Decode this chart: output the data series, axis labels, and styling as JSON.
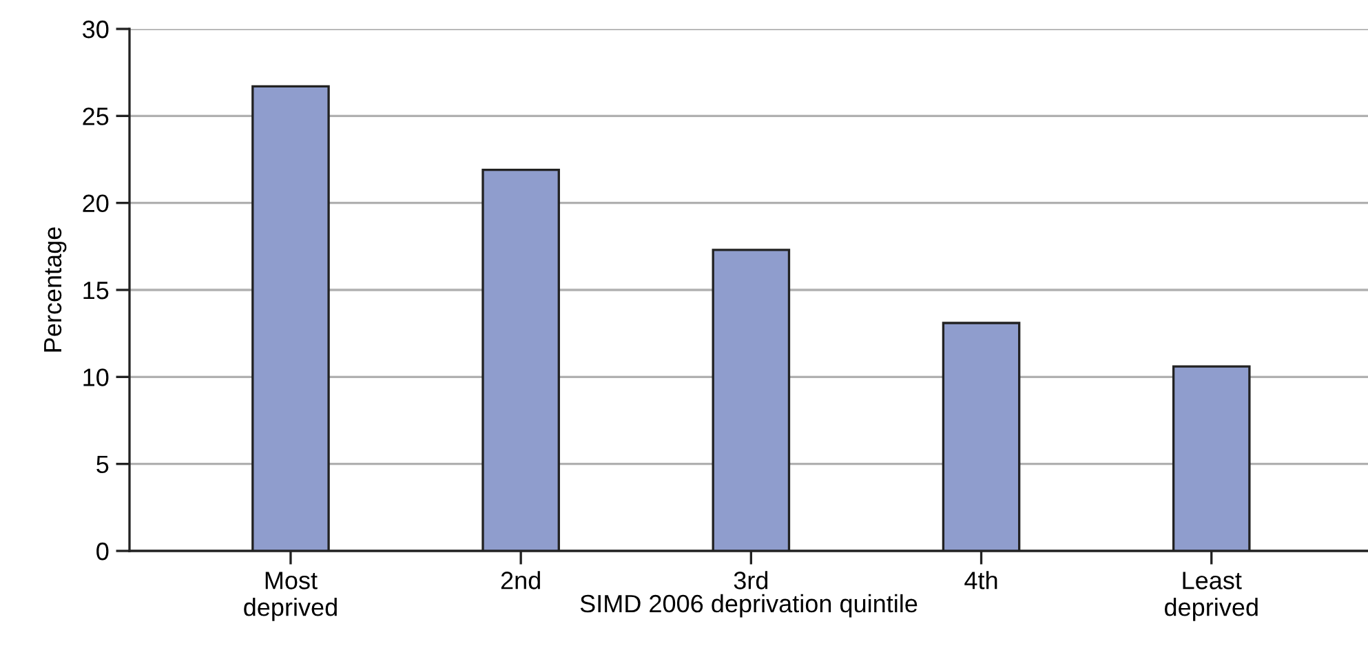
{
  "chart_data": {
    "type": "bar",
    "categories": [
      "Most\ndeprived",
      "2nd",
      "3rd",
      "4th",
      "Least\ndeprived"
    ],
    "values": [
      26.7,
      21.9,
      17.3,
      13.1,
      10.6
    ],
    "color": "#8f9dcd",
    "xlabel": "SIMD 2006 deprivation quintile",
    "ylabel": "Percentage",
    "ylim": [
      0,
      30
    ],
    "yticks": [
      0,
      5,
      10,
      15,
      20,
      25,
      30
    ],
    "grid": "y"
  }
}
